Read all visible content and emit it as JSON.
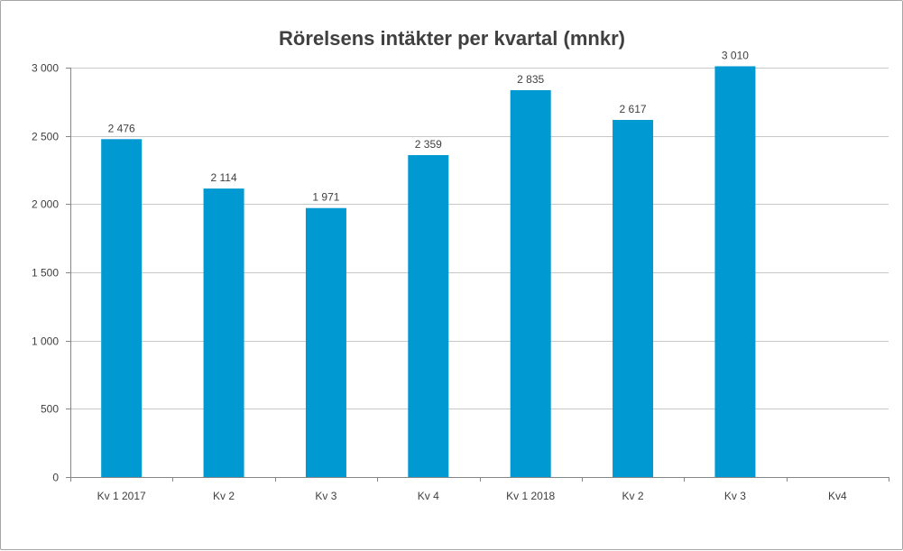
{
  "chart_data": {
    "type": "bar",
    "title": "Rörelsens intäkter per kvartal (mnkr)",
    "xlabel": "",
    "ylabel": "",
    "ylim": [
      0,
      3000
    ],
    "yticks": [
      0,
      500,
      1000,
      1500,
      2000,
      2500,
      3000
    ],
    "ytick_labels": [
      "0",
      "500",
      "1 000",
      "1 500",
      "2 000",
      "2 500",
      "3 000"
    ],
    "grid": true,
    "categories": [
      "Kv 1 2017",
      "Kv 2",
      "Kv 3",
      "Kv 4",
      "Kv 1 2018",
      "Kv 2",
      "Kv 3",
      "Kv4"
    ],
    "values": [
      2476,
      2114,
      1971,
      2359,
      2835,
      2617,
      3010,
      null
    ],
    "value_labels": [
      "2 476",
      "2 114",
      "1 971",
      "2 359",
      "2 835",
      "2 617",
      "3 010",
      ""
    ],
    "bar_color": "#0099d2",
    "grid_color": "#c8c8c8",
    "axis_color": "#868686",
    "text_color": "#404040"
  }
}
